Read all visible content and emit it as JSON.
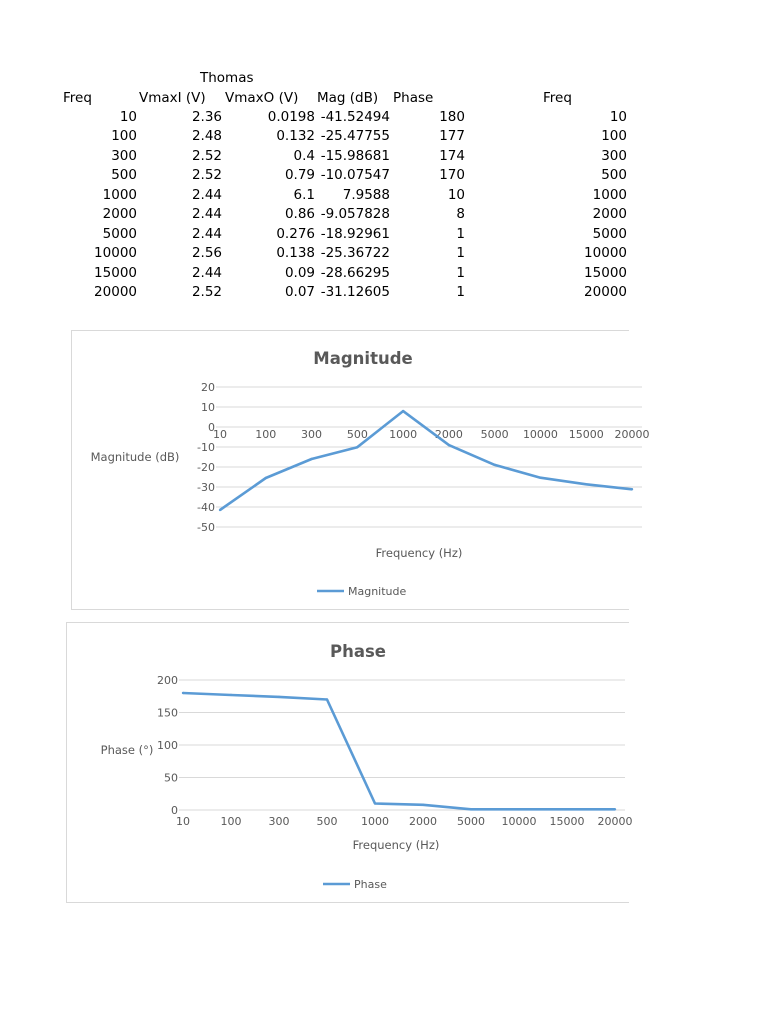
{
  "table": {
    "group_label": "Thomas",
    "headers": [
      "Freq",
      "VmaxI (V)",
      "VmaxO (V)",
      "Mag (dB)",
      "Phase",
      "Freq"
    ],
    "rows": [
      [
        "10",
        "2.36",
        "0.0198",
        "-41.52494",
        "180",
        "10"
      ],
      [
        "100",
        "2.48",
        "0.132",
        "-25.47755",
        "177",
        "100"
      ],
      [
        "300",
        "2.52",
        "0.4",
        "-15.98681",
        "174",
        "300"
      ],
      [
        "500",
        "2.52",
        "0.79",
        "-10.07547",
        "170",
        "500"
      ],
      [
        "1000",
        "2.44",
        "6.1",
        "7.9588",
        "10",
        "1000"
      ],
      [
        "2000",
        "2.44",
        "0.86",
        "-9.057828",
        "8",
        "2000"
      ],
      [
        "5000",
        "2.44",
        "0.276",
        "-18.92961",
        "1",
        "5000"
      ],
      [
        "10000",
        "2.56",
        "0.138",
        "-25.36722",
        "1",
        "10000"
      ],
      [
        "15000",
        "2.44",
        "0.09",
        "-28.66295",
        "1",
        "15000"
      ],
      [
        "20000",
        "2.52",
        "0.07",
        "-31.12605",
        "1",
        "20000"
      ]
    ]
  },
  "chart_data": [
    {
      "type": "line",
      "title": "Magnitude",
      "xlabel": "Frequency (Hz)",
      "ylabel": "Magnitude (dB)",
      "categories": [
        "10",
        "100",
        "300",
        "500",
        "1000",
        "2000",
        "5000",
        "10000",
        "15000",
        "20000"
      ],
      "series": [
        {
          "name": "Magnitude",
          "values": [
            -41.52494,
            -25.47755,
            -15.98681,
            -10.07547,
            7.9588,
            -9.057828,
            -18.92961,
            -25.36722,
            -28.66295,
            -31.12605
          ]
        }
      ],
      "ylim": [
        -50,
        20
      ],
      "yticks": [
        "20",
        "10",
        "0",
        "-10",
        "-20",
        "-30",
        "-40",
        "-50"
      ],
      "grid": true,
      "legend": "bottom",
      "color": "#5b9bd5"
    },
    {
      "type": "line",
      "title": "Phase",
      "xlabel": "Frequency (Hz)",
      "ylabel": "Phase (°)",
      "categories": [
        "10",
        "100",
        "300",
        "500",
        "1000",
        "2000",
        "5000",
        "10000",
        "15000",
        "20000"
      ],
      "series": [
        {
          "name": "Phase",
          "values": [
            180,
            177,
            174,
            170,
            10,
            8,
            1,
            1,
            1,
            1
          ]
        }
      ],
      "ylim": [
        0,
        200
      ],
      "yticks": [
        "200",
        "150",
        "100",
        "50",
        "0"
      ],
      "grid": true,
      "legend": "bottom",
      "color": "#5b9bd5"
    }
  ]
}
